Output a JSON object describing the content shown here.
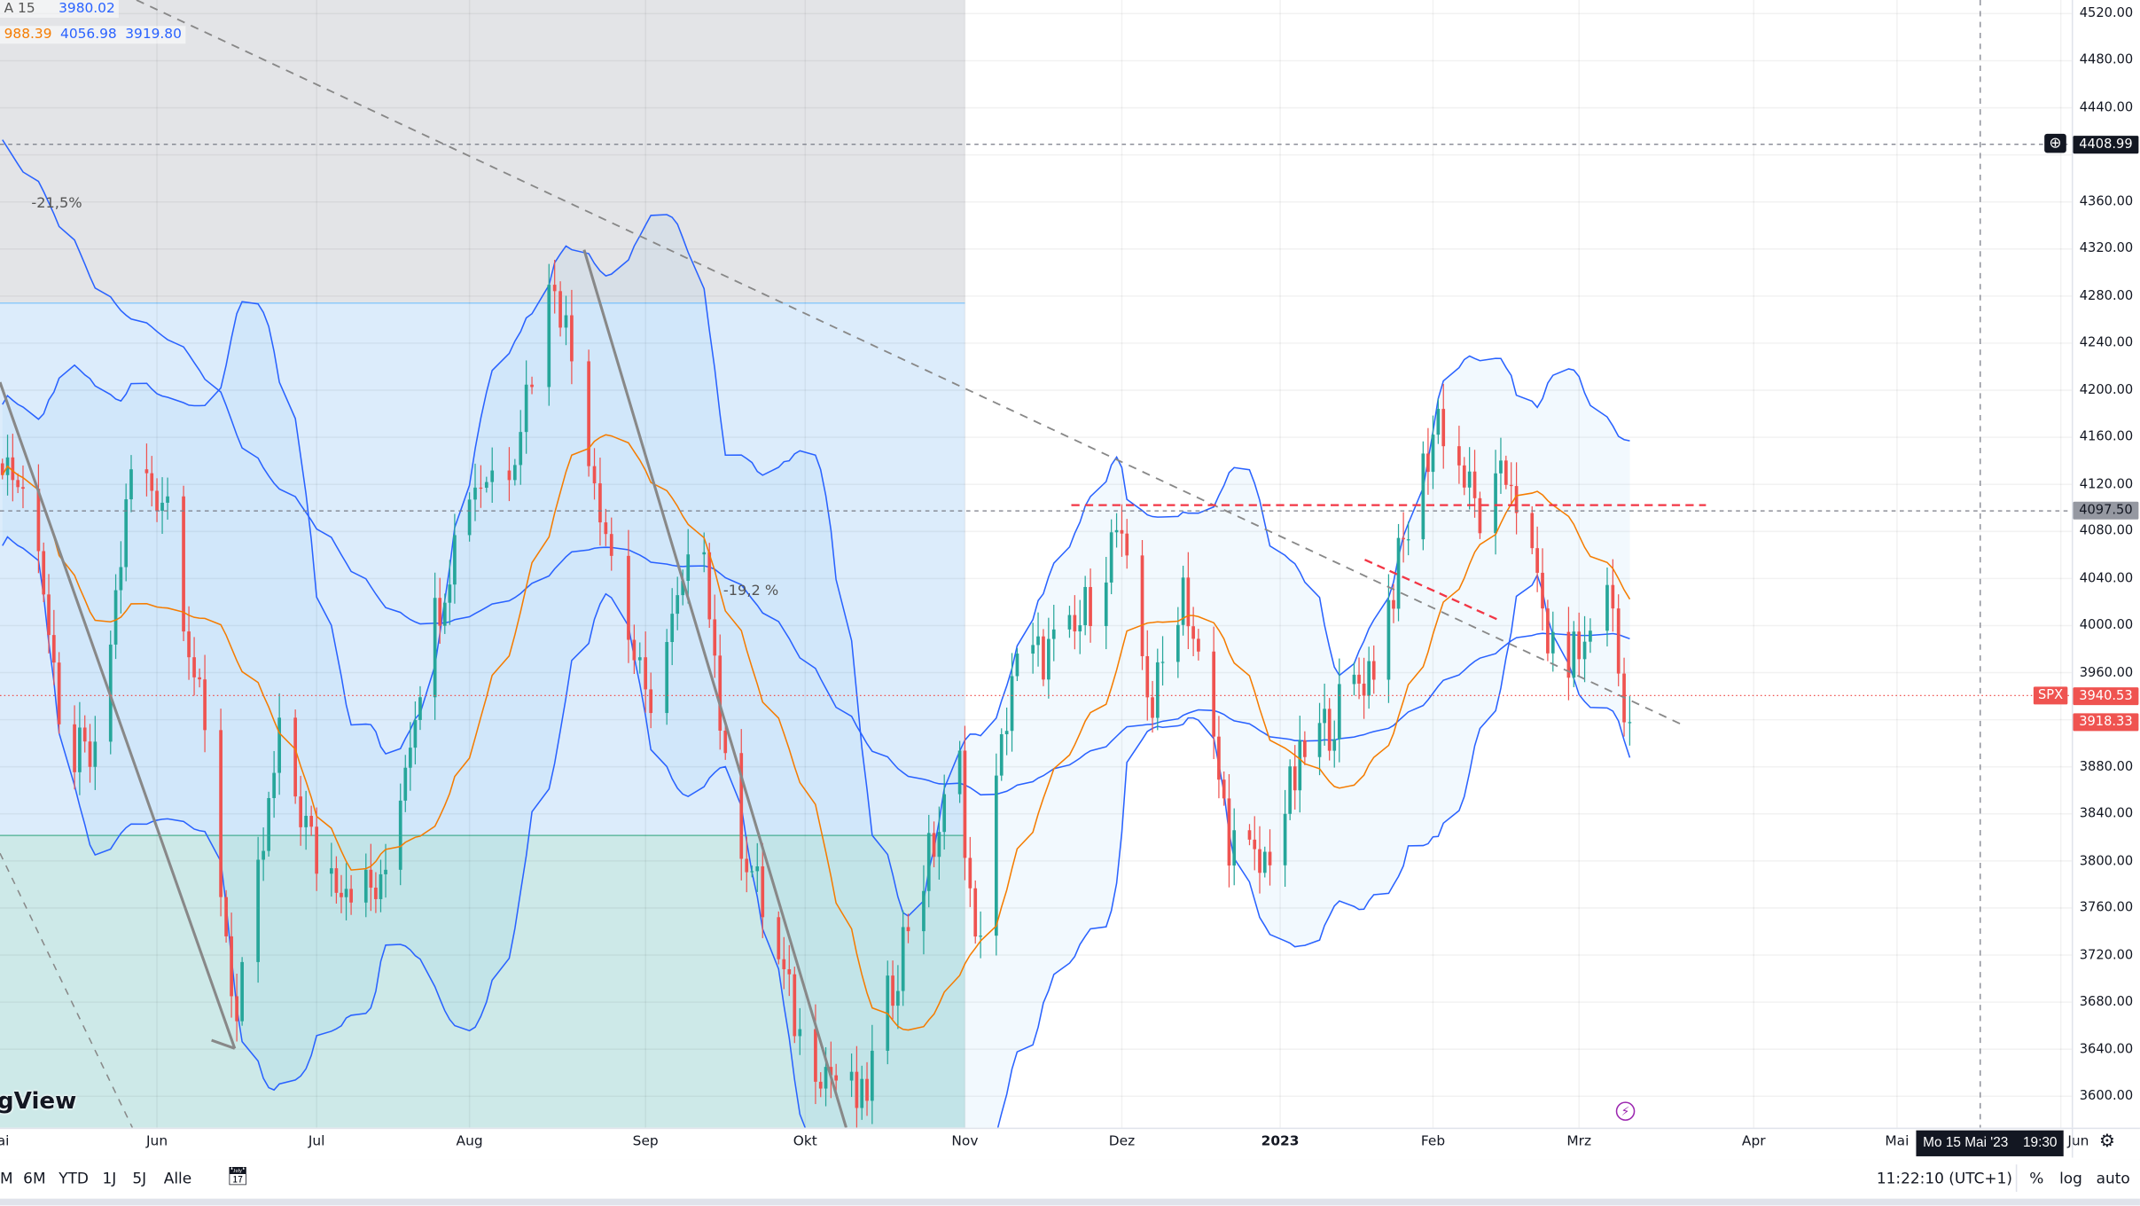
{
  "legend": {
    "row1": {
      "label": "A 15",
      "value": "3980.02"
    },
    "row2": {
      "v1": "988.39",
      "v2": "4056.98",
      "v3": "3919.80"
    }
  },
  "annotations": {
    "drop1": "-21,5%",
    "drop2": "-19,2 %"
  },
  "logo_text": "gView",
  "price_axis": {
    "ticks": [
      "4520.00",
      "4480.00",
      "4440.00",
      "4360.00",
      "4320.00",
      "4280.00",
      "4240.00",
      "4200.00",
      "4160.00",
      "4120.00",
      "4080.00",
      "4040.00",
      "4000.00",
      "3960.00",
      "3880.00",
      "3840.00",
      "3800.00",
      "3760.00",
      "3720.00",
      "3680.00",
      "3640.00",
      "3600.00"
    ],
    "crosshair_price": "4408.99",
    "horizontal_line_price": "4097.50",
    "symbol": "SPX",
    "last_price": "3940.53",
    "second_price": "3918.33"
  },
  "time_axis": {
    "ticks": [
      "Mai",
      "Jun",
      "Jul",
      "Aug",
      "Sep",
      "Okt",
      "Nov",
      "Dez",
      "2023",
      "Feb",
      "Mrz",
      "Apr",
      "Mai",
      "Jun"
    ],
    "crosshair_time": "Mo 15 Mai '23",
    "crosshair_clock": "19:30"
  },
  "toolbar": {
    "ranges": [
      "M",
      "6M",
      "YTD",
      "1J",
      "5J",
      "Alle"
    ],
    "clock": "11:22:10 (UTC+1)",
    "percent": "%",
    "log": "log",
    "auto": "auto"
  },
  "colors": {
    "up": "#26a69a",
    "down": "#ef5350",
    "ma": "#f57c00",
    "bands": "#2962ff",
    "accent_red": "#f23645"
  },
  "icons": [
    "crosshair-plus-icon",
    "calendar-range-icon",
    "settings-gear-icon",
    "lightning-event-icon"
  ],
  "chart_data": {
    "type": "candlestick",
    "symbol": "SPX",
    "ylim": [
      3580,
      4530
    ],
    "y_scale": "linear",
    "grid": true,
    "closes": [
      [
        "2022-05-02",
        4150
      ],
      [
        "2022-05-09",
        4080
      ],
      [
        "2022-05-13",
        3900
      ],
      [
        "2022-05-20",
        3880
      ],
      [
        "2022-05-27",
        4130
      ],
      [
        "2022-06-03",
        4110
      ],
      [
        "2022-06-10",
        3900
      ],
      [
        "2022-06-16",
        3660
      ],
      [
        "2022-06-24",
        3900
      ],
      [
        "2022-07-01",
        3800
      ],
      [
        "2022-07-14",
        3770
      ],
      [
        "2022-07-22",
        3960
      ],
      [
        "2022-08-01",
        4120
      ],
      [
        "2022-08-08",
        4140
      ],
      [
        "2022-08-16",
        4300
      ],
      [
        "2022-08-26",
        4060
      ],
      [
        "2022-09-01",
        3930
      ],
      [
        "2022-09-12",
        4080
      ],
      [
        "2022-09-16",
        3870
      ],
      [
        "2022-09-30",
        3650
      ],
      [
        "2022-10-12",
        3590
      ],
      [
        "2022-10-21",
        3750
      ],
      [
        "2022-10-31",
        3880
      ],
      [
        "2022-11-03",
        3720
      ],
      [
        "2022-11-10",
        3960
      ],
      [
        "2022-11-22",
        3990
      ],
      [
        "2022-11-30",
        4080
      ],
      [
        "2022-12-07",
        3930
      ],
      [
        "2022-12-13",
        4040
      ],
      [
        "2022-12-22",
        3820
      ],
      [
        "2022-12-28",
        3790
      ],
      [
        "2023-01-06",
        3890
      ],
      [
        "2023-01-20",
        3970
      ],
      [
        "2023-02-02",
        4180
      ],
      [
        "2023-02-10",
        4090
      ],
      [
        "2023-02-16",
        4130
      ],
      [
        "2023-02-24",
        3970
      ],
      [
        "2023-03-02",
        3980
      ],
      [
        "2023-03-06",
        4045
      ],
      [
        "2023-03-09",
        3918
      ],
      [
        "2023-03-10",
        3918
      ]
    ],
    "indicators": [
      "Bollinger Bands",
      "Moving Average"
    ],
    "horizontal_levels": [
      4408.99,
      4097.5,
      3940.53
    ],
    "annotations": [
      "-21,5%",
      "-19,2 %"
    ]
  }
}
